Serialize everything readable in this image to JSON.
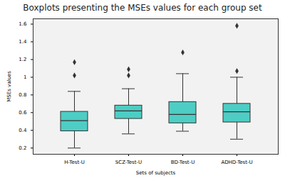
{
  "chart_data": {
    "type": "boxplot",
    "title": "Boxplots presenting the MSEs values for each group set",
    "x_label": "Sets of subjects",
    "y_label": "MSEs values",
    "categories": [
      "H-Test-U",
      "SCZ-Test-U",
      "BD-Test-U",
      "ADHD-Test-U"
    ],
    "boxes": [
      {
        "whislo": 0.2,
        "q1": 0.39,
        "med": 0.51,
        "q3": 0.61,
        "whishi": 0.84,
        "fliers": [
          1.02,
          1.17
        ]
      },
      {
        "whislo": 0.36,
        "q1": 0.53,
        "med": 0.62,
        "q3": 0.68,
        "whishi": 0.87,
        "fliers": [
          1.02,
          1.09
        ]
      },
      {
        "whislo": 0.39,
        "q1": 0.48,
        "med": 0.58,
        "q3": 0.72,
        "whishi": 1.04,
        "fliers": [
          1.28
        ]
      },
      {
        "whislo": 0.3,
        "q1": 0.49,
        "med": 0.61,
        "q3": 0.7,
        "whishi": 1.0,
        "fliers": [
          1.07,
          1.58
        ]
      }
    ],
    "color": "#4ecdc4",
    "ylim": [
      0.13,
      1.66
    ],
    "yticks": [
      0.2,
      0.4,
      0.6,
      0.8,
      1.0,
      1.2,
      1.4,
      1.6
    ],
    "grid": false
  }
}
